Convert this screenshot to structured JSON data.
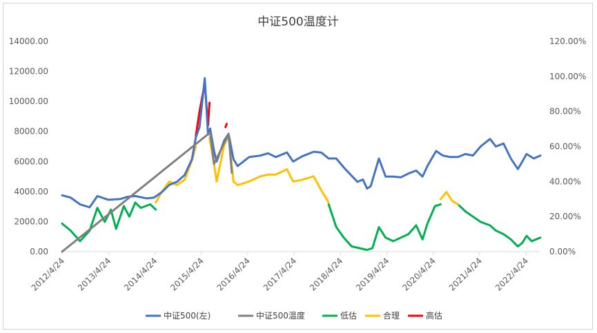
{
  "chart_data": {
    "type": "line",
    "title": "中证500温度计",
    "y_left": {
      "ticks": [
        "0.00",
        "2000.00",
        "4000.00",
        "6000.00",
        "8000.00",
        "10000.00",
        "12000.00",
        "14000.00"
      ],
      "range": [
        0,
        14000
      ]
    },
    "y_right": {
      "ticks": [
        "0.00%",
        "20.00%",
        "40.00%",
        "60.00%",
        "80.00%",
        "100.00%",
        "120.00%"
      ],
      "range": [
        0,
        120
      ]
    },
    "x_ticks": [
      "2012/4/24",
      "2013/4/24",
      "2014/4/24",
      "2015/4/24",
      "2016/4/24",
      "2017/4/24",
      "2018/4/24",
      "2019/4/24",
      "2020/4/24",
      "2021/4/24",
      "2022/4/24"
    ],
    "x_range": [
      "2012-04-24",
      "2022-10-24"
    ],
    "grid": false,
    "legend_position": "bottom",
    "series": [
      {
        "name": "中证500(左)",
        "axis": "left",
        "color": "#4472C4",
        "x": [
          "2012-04-24",
          "2012-07-01",
          "2012-09-15",
          "2012-12-01",
          "2013-02-01",
          "2013-05-01",
          "2013-08-01",
          "2013-10-01",
          "2013-12-01",
          "2014-03-01",
          "2014-05-01",
          "2014-07-01",
          "2014-09-01",
          "2014-11-01",
          "2015-01-01",
          "2015-03-01",
          "2015-04-01",
          "2015-05-01",
          "2015-06-12",
          "2015-07-08",
          "2015-07-25",
          "2015-08-25",
          "2015-09-15",
          "2015-11-15",
          "2015-12-20",
          "2016-01-28",
          "2016-03-01",
          "2016-06-01",
          "2016-09-01",
          "2016-11-01",
          "2017-01-01",
          "2017-04-01",
          "2017-05-20",
          "2017-08-01",
          "2017-11-01",
          "2018-01-01",
          "2018-03-01",
          "2018-05-01",
          "2018-07-01",
          "2018-10-18",
          "2018-12-01",
          "2019-01-03",
          "2019-02-01",
          "2019-04-08",
          "2019-06-01",
          "2019-08-01",
          "2019-10-01",
          "2019-12-01",
          "2020-02-01",
          "2020-03-23",
          "2020-05-01",
          "2020-07-10",
          "2020-09-01",
          "2020-11-01",
          "2021-01-01",
          "2021-03-01",
          "2021-05-01",
          "2021-07-01",
          "2021-09-15",
          "2021-11-01",
          "2022-01-01",
          "2022-03-01",
          "2022-04-26",
          "2022-06-01",
          "2022-07-05",
          "2022-09-01",
          "2022-10-24"
        ],
        "y": [
          3750,
          3600,
          3150,
          2950,
          3700,
          3450,
          3500,
          3650,
          3700,
          3550,
          3600,
          3950,
          4450,
          4650,
          5100,
          6150,
          7600,
          8300,
          11550,
          7800,
          8200,
          6700,
          6000,
          7400,
          7850,
          6150,
          5700,
          6300,
          6400,
          6550,
          6300,
          6600,
          6000,
          6350,
          6650,
          6600,
          6200,
          6200,
          5600,
          4650,
          4800,
          4200,
          4350,
          6200,
          5000,
          5000,
          4950,
          5200,
          5400,
          5000,
          5700,
          6700,
          6400,
          6300,
          6300,
          6500,
          6400,
          7000,
          7500,
          7000,
          7200,
          6200,
          5500,
          6000,
          6500,
          6200,
          6400
        ]
      },
      {
        "name": "中证500温度",
        "axis": "right",
        "color": "#7F7F7F",
        "x": [
          "2012-04-24",
          "2015-07-25",
          "2015-08-25",
          "2015-11-15",
          "2015-12-20",
          "2016-01-15"
        ],
        "y": [
          0,
          68,
          50,
          62,
          67,
          45
        ]
      },
      {
        "name": "低估",
        "axis": "right",
        "color": "#00B050",
        "x": [
          "2012-04-24",
          "2012-07-01",
          "2012-09-15",
          "2012-12-01",
          "2013-02-01",
          "2013-04-01",
          "2013-05-20",
          "2013-07-01",
          "2013-09-01",
          "2013-10-15",
          "2013-12-01",
          "2014-01-15",
          "2014-04-01",
          "2014-05-15",
          null,
          "2018-03-01",
          "2018-05-01",
          "2018-07-01",
          "2018-09-01",
          "2018-11-01",
          "2019-01-03",
          "2019-02-15",
          "2019-04-08",
          "2019-06-01",
          "2019-08-01",
          "2019-10-01",
          "2019-12-01",
          "2020-02-01",
          "2020-03-23",
          "2020-05-01",
          "2020-07-01",
          "2020-08-15",
          null,
          "2021-01-01",
          "2021-03-01",
          "2021-05-01",
          "2021-07-01",
          "2021-09-15",
          "2021-11-01",
          "2022-01-01",
          "2022-03-01",
          "2022-04-26",
          "2022-06-01",
          "2022-07-05",
          "2022-08-15",
          "2022-10-24"
        ],
        "y": [
          16,
          12,
          6,
          12,
          25,
          17,
          24,
          13,
          26,
          20,
          28,
          25,
          27,
          24,
          null,
          27,
          14,
          8,
          3,
          2,
          1,
          2,
          14,
          8,
          6,
          8,
          10,
          15,
          7,
          16,
          26,
          27,
          null,
          27,
          23,
          20,
          17,
          15,
          12,
          10,
          7,
          3,
          5,
          9,
          6,
          8
        ]
      },
      {
        "name": "合理",
        "axis": "right",
        "color": "#FFC000",
        "x": [
          "2014-05-15",
          "2014-07-01",
          "2014-09-01",
          "2014-11-01",
          "2015-01-01",
          "2015-03-01",
          "2015-04-01",
          null,
          "2015-07-20",
          "2015-08-25",
          "2015-09-15",
          "2015-11-15",
          "2015-12-20",
          "2016-01-28",
          "2016-03-01",
          "2016-06-01",
          "2016-09-01",
          "2016-11-01",
          "2017-01-01",
          "2017-04-01",
          "2017-05-20",
          "2017-08-01",
          "2017-11-01",
          "2018-01-01",
          "2018-03-01",
          null,
          "2020-08-15",
          "2020-10-01",
          "2020-11-15",
          "2021-01-01"
        ],
        "y": [
          28,
          34,
          40,
          38,
          41,
          52,
          60,
          null,
          65,
          50,
          40,
          61,
          66,
          40,
          38,
          40,
          43,
          44,
          44,
          47,
          40,
          41,
          43,
          35,
          28,
          null,
          30,
          34,
          29,
          27
        ]
      },
      {
        "name": "高估",
        "axis": "right",
        "color": "#FF0000",
        "x": [
          "2015-04-01",
          "2015-05-01",
          "2015-06-12",
          "2015-07-08",
          "2015-07-20",
          null,
          "2015-11-25",
          "2015-12-05"
        ],
        "y": [
          66,
          80,
          96,
          72,
          85,
          null,
          71,
          73
        ]
      }
    ]
  }
}
